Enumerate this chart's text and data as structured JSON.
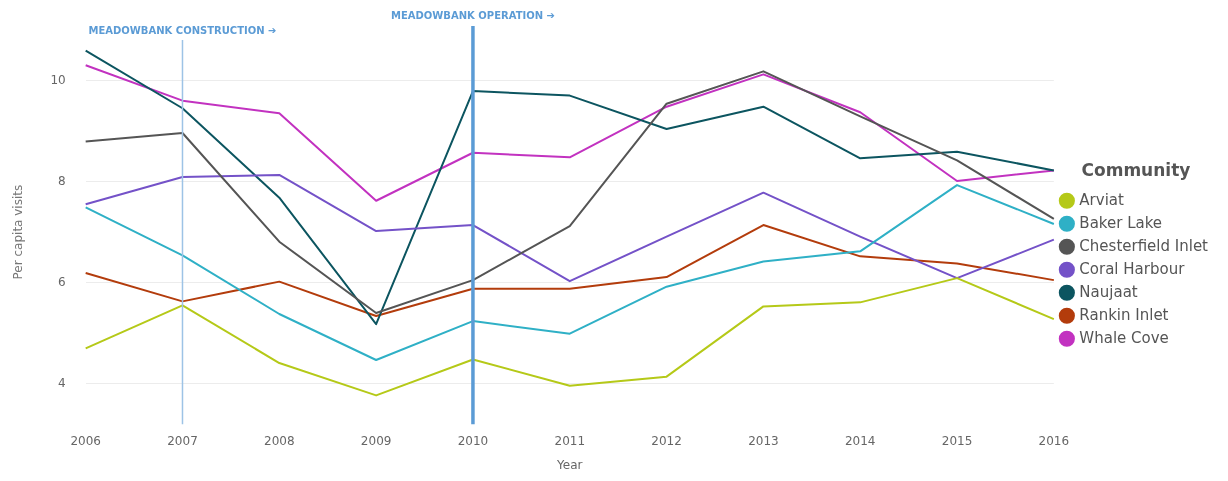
{
  "chart_data": {
    "type": "line",
    "xlabel": "Year",
    "ylabel": "Per capita visits",
    "legend_title": "Community",
    "categories": [
      "2006",
      "2007",
      "2008",
      "2009",
      "2010",
      "2011",
      "2012",
      "2013",
      "2014",
      "2015",
      "2016"
    ],
    "series": [
      {
        "name": "Arviat",
        "color": "#b5c918",
        "values": [
          4.7,
          5.55,
          4.41,
          3.77,
          4.48,
          3.96,
          4.14,
          5.53,
          5.61,
          6.09,
          5.28
        ]
      },
      {
        "name": "Baker Lake",
        "color": "#2fb0c6",
        "values": [
          7.49,
          6.54,
          5.38,
          4.47,
          5.24,
          4.99,
          5.92,
          6.42,
          6.62,
          7.93,
          7.16
        ]
      },
      {
        "name": "Chesterfield Inlet",
        "color": "#555555",
        "values": [
          8.79,
          8.96,
          6.81,
          5.4,
          6.05,
          7.12,
          9.54,
          10.18,
          9.29,
          8.42,
          7.26
        ]
      },
      {
        "name": "Coral Harbour",
        "color": "#7452c8",
        "values": [
          7.55,
          8.09,
          8.13,
          7.02,
          7.14,
          6.03,
          6.91,
          7.78,
          6.91,
          6.09,
          6.85
        ]
      },
      {
        "name": "Naujaat",
        "color": "#0c5560",
        "values": [
          10.59,
          9.45,
          7.68,
          5.18,
          9.79,
          9.7,
          9.04,
          9.48,
          8.46,
          8.59,
          8.22
        ]
      },
      {
        "name": "Rankin Inlet",
        "color": "#b33c0c",
        "values": [
          6.19,
          5.63,
          6.02,
          5.34,
          5.88,
          5.88,
          6.11,
          7.14,
          6.52,
          6.38,
          6.05
        ]
      },
      {
        "name": "Whale Cove",
        "color": "#c232c0",
        "values": [
          10.3,
          9.6,
          9.35,
          7.62,
          8.57,
          8.48,
          9.48,
          10.12,
          9.37,
          8.01,
          8.22
        ]
      }
    ],
    "ylim": [
      3.2,
      10.8
    ],
    "yticks": [
      4,
      6,
      8,
      10
    ],
    "grid": "y",
    "legend": "right",
    "marker": "none",
    "line_style": "solid",
    "ref_lines": [
      {
        "axis": "x",
        "value": "2007",
        "label": "MEADOWBANK CONSTRUCTION ➔",
        "color": "#9dc3e6"
      },
      {
        "axis": "x",
        "value": "2010",
        "label": "MEADOWBANK OPERATION ➔",
        "color": "#5b9bd5"
      }
    ]
  }
}
